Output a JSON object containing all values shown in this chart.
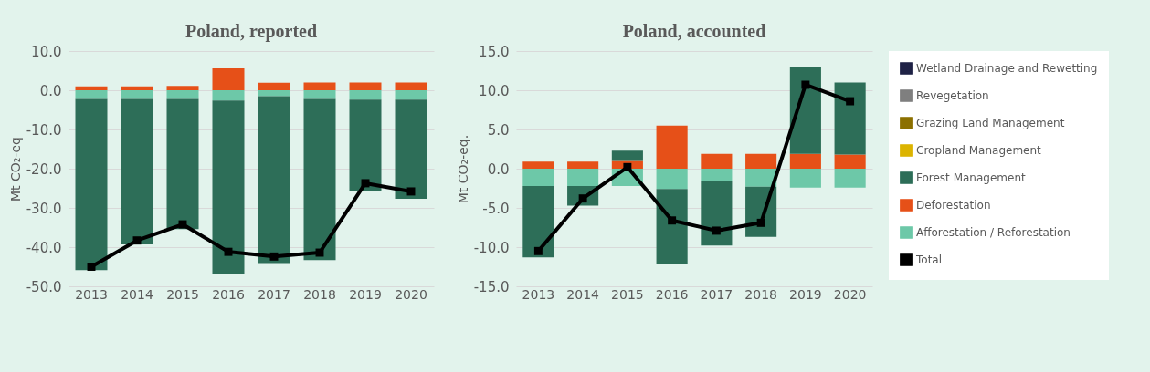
{
  "chart_data": [
    {
      "type": "bar",
      "title": "Poland, reported",
      "ylabel": "Mt CO₂-eq",
      "stacked": true,
      "grid": "y",
      "legend": false,
      "categories": [
        "2013",
        "2014",
        "2015",
        "2016",
        "2017",
        "2018",
        "2019",
        "2020"
      ],
      "ylim": [
        -50,
        10
      ],
      "yticks": [
        {
          "value": -50,
          "label": "-50.0"
        },
        {
          "value": -40,
          "label": "-40.0"
        },
        {
          "value": -30,
          "label": "-30.0"
        },
        {
          "value": -20,
          "label": "-20.0"
        },
        {
          "value": -10,
          "label": "-10.0"
        },
        {
          "value": 0,
          "label": "0.0"
        },
        {
          "value": 10,
          "label": "10.0"
        }
      ],
      "series": [
        {
          "color": "#6dc8a8",
          "values": [
            -2.2,
            -2.2,
            -2.2,
            -2.6,
            -1.5,
            -2.2,
            -2.4,
            -2.4
          ]
        },
        {
          "color": "#e65018",
          "values": [
            1.0,
            1.0,
            1.1,
            5.6,
            1.9,
            2.0,
            2.0,
            2.0
          ]
        },
        {
          "color": "#2d6e58",
          "values": [
            -43.7,
            -37.1,
            -33.2,
            -44.2,
            -42.8,
            -41.1,
            -23.3,
            -25.3
          ]
        },
        {
          "type": "line",
          "color": "#000000",
          "marker": "square",
          "values": [
            -45.0,
            -38.3,
            -34.2,
            -41.2,
            -42.4,
            -41.4,
            -23.7,
            -25.8
          ]
        }
      ]
    },
    {
      "type": "bar",
      "title": "Poland, accounted",
      "ylabel": "Mt CO₂-eq.",
      "stacked": true,
      "grid": "y",
      "legend": "right",
      "categories": [
        "2013",
        "2014",
        "2015",
        "2016",
        "2017",
        "2018",
        "2019",
        "2020"
      ],
      "ylim": [
        -15,
        15
      ],
      "yticks": [
        {
          "value": -15,
          "label": "-15.0"
        },
        {
          "value": -10,
          "label": "-10.0"
        },
        {
          "value": -5,
          "label": "-5.0"
        },
        {
          "value": 0,
          "label": "0.0"
        },
        {
          "value": 5,
          "label": "5.0"
        },
        {
          "value": 10,
          "label": "10.0"
        },
        {
          "value": 15,
          "label": "15.0"
        }
      ],
      "series": [
        {
          "name": "Afforestation / Reforestation",
          "color": "#6dc8a8",
          "values": [
            -2.2,
            -2.2,
            -2.2,
            -2.6,
            -1.6,
            -2.3,
            -2.4,
            -2.4
          ]
        },
        {
          "name": "Deforestation",
          "color": "#e65018",
          "values": [
            0.9,
            0.9,
            1.0,
            5.5,
            1.9,
            1.9,
            1.9,
            1.8
          ]
        },
        {
          "name": "Forest Management",
          "color": "#2d6e58",
          "values": [
            -9.1,
            -2.5,
            1.3,
            -9.6,
            -8.2,
            -6.4,
            11.1,
            9.2
          ]
        },
        {
          "name": "Cropland Management",
          "color": "#dcb400",
          "values": [
            null,
            null,
            null,
            null,
            null,
            null,
            null,
            null
          ]
        },
        {
          "name": "Grazing Land Management",
          "color": "#8c7000",
          "values": [
            null,
            null,
            null,
            null,
            null,
            null,
            null,
            null
          ]
        },
        {
          "name": "Revegetation",
          "color": "#7f7f7f",
          "values": [
            null,
            null,
            null,
            null,
            null,
            null,
            null,
            null
          ]
        },
        {
          "name": "Wetland Drainage and Rewetting",
          "color": "#1f2246",
          "values": [
            null,
            null,
            null,
            null,
            null,
            null,
            null,
            null
          ]
        },
        {
          "name": "Total",
          "type": "line",
          "color": "#000000",
          "marker": "square",
          "values": [
            -10.5,
            -3.8,
            0.2,
            -6.6,
            -7.9,
            -6.9,
            10.7,
            8.6
          ]
        }
      ]
    }
  ]
}
